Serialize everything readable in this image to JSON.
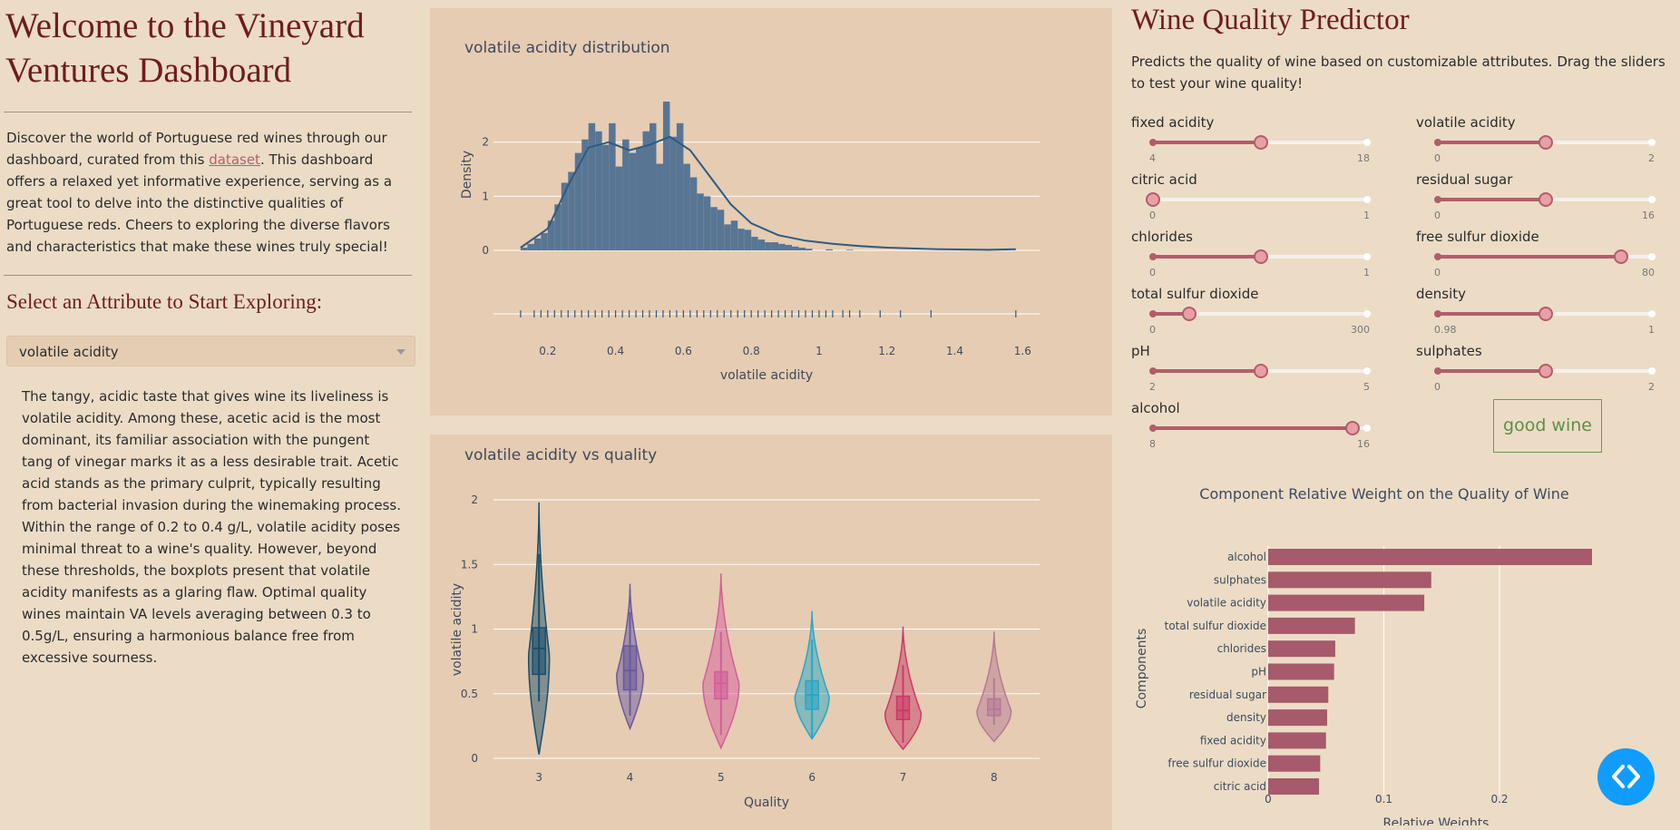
{
  "dashboard": {
    "title": "Welcome to the Vineyard Ventures Dashboard",
    "intro_before": "Discover the world of Portuguese red wines through our dashboard, curated from this ",
    "intro_link": "dataset",
    "intro_after": ". This dashboard offers a relaxed yet informative experience, serving as a great tool to delve into the distinctive qualities of Portuguese reds. Cheers to exploring the diverse flavors and characteristics that make these wines truly special!",
    "select_heading": "Select an Attribute to Start Exploring:",
    "dropdown_value": "volatile acidity",
    "description": "The tangy, acidic taste that gives wine its liveliness is volatile acidity. Among these, acetic acid is the most dominant, its familiar association with the pungent tang of vinegar marks it as a less desirable trait. Acetic acid stands as the primary culprit, typically resulting from bacterial invasion during the winemaking process. Within the range of 0.2 to 0.4 g/L, volatile acidity poses minimal threat to a wine's quality. However, beyond these thresholds, the boxplots present that volatile acidity manifests as a glaring flaw. Optimal quality wines maintain VA levels averaging between 0.3 to 0.5g/L, ensuring a harmonious balance free from excessive sourness."
  },
  "predictor": {
    "title": "Wine Quality Predictor",
    "subtitle": "Predicts the quality of wine based on customizable attributes. Drag the sliders to test your wine quality!",
    "result": "good wine",
    "sliders": [
      {
        "label": "fixed acidity",
        "min": "4",
        "max": "18",
        "value": 11
      },
      {
        "label": "volatile acidity",
        "min": "0",
        "max": "2",
        "value": 1
      },
      {
        "label": "citric acid",
        "min": "0",
        "max": "1",
        "value": 0
      },
      {
        "label": "residual sugar",
        "min": "0",
        "max": "16",
        "value": 8
      },
      {
        "label": "chlorides",
        "min": "0",
        "max": "1",
        "value": 0.5
      },
      {
        "label": "free sulfur dioxide",
        "min": "0",
        "max": "80",
        "value": 68
      },
      {
        "label": "total sulfur dioxide",
        "min": "0",
        "max": "300",
        "value": 50
      },
      {
        "label": "density",
        "min": "0.98",
        "max": "1",
        "value": 0.99
      },
      {
        "label": "pH",
        "min": "2",
        "max": "5",
        "value": 3.5
      },
      {
        "label": "sulphates",
        "min": "0",
        "max": "2",
        "value": 1
      },
      {
        "label": "alcohol",
        "min": "8",
        "max": "16",
        "value": 15.4
      }
    ]
  },
  "colors": {
    "accent": "#b25d6a",
    "title": "#6f1c1f",
    "hist": "#587694",
    "button": "#119dff"
  },
  "chart_data": [
    {
      "type": "bar",
      "subtype": "histogram-with-density-and-rug",
      "title": "volatile acidity distribution",
      "xlabel": "volatile acidity",
      "ylabel": "Density",
      "xlim": [
        0.04,
        1.65
      ],
      "ylim": [
        0,
        2.8
      ],
      "xticks": [
        "0.2",
        "0.4",
        "0.6",
        "0.8",
        "1",
        "1.2",
        "1.4",
        "1.6"
      ],
      "yticks": [
        "0",
        "1",
        "2"
      ],
      "bin_start": 0.12,
      "bin_width": 0.02,
      "values": [
        0.05,
        0.12,
        0.22,
        0.32,
        0.55,
        0.85,
        1.25,
        1.45,
        1.8,
        2.05,
        2.35,
        2.2,
        1.95,
        2.35,
        1.55,
        2.05,
        1.8,
        1.9,
        2.2,
        2.35,
        1.6,
        2.75,
        2.1,
        2.35,
        1.6,
        1.35,
        1.05,
        1.0,
        0.8,
        0.75,
        0.48,
        0.55,
        0.4,
        0.38,
        0.25,
        0.2,
        0.15,
        0.15,
        0.12,
        0.1,
        0.07,
        0.05,
        0.03,
        0.0,
        0.0,
        0.02,
        0.0,
        0.0,
        0.01,
        0.0,
        0.0,
        0.0,
        0.0,
        0.0,
        0.0,
        0.0,
        0.0,
        0.0,
        0.0,
        0.0,
        0.0,
        0.0,
        0.0,
        0.0,
        0.0,
        0.0,
        0.0,
        0.0,
        0.0,
        0.0,
        0.0,
        0.02
      ],
      "kde_x": [
        0.12,
        0.2,
        0.26,
        0.32,
        0.38,
        0.44,
        0.5,
        0.56,
        0.62,
        0.68,
        0.74,
        0.8,
        0.88,
        0.96,
        1.04,
        1.12,
        1.2,
        1.35,
        1.5,
        1.58
      ],
      "kde_y": [
        0.05,
        0.4,
        1.2,
        1.9,
        2.0,
        1.85,
        1.95,
        2.1,
        1.85,
        1.35,
        0.85,
        0.5,
        0.28,
        0.18,
        0.12,
        0.08,
        0.05,
        0.02,
        0.01,
        0.02
      ],
      "rug": [
        0.12,
        0.16,
        0.18,
        0.2,
        0.22,
        0.24,
        0.26,
        0.28,
        0.3,
        0.32,
        0.34,
        0.36,
        0.38,
        0.4,
        0.42,
        0.44,
        0.46,
        0.48,
        0.5,
        0.52,
        0.54,
        0.56,
        0.58,
        0.6,
        0.62,
        0.64,
        0.66,
        0.68,
        0.7,
        0.72,
        0.74,
        0.76,
        0.78,
        0.8,
        0.82,
        0.84,
        0.86,
        0.88,
        0.9,
        0.92,
        0.94,
        0.96,
        0.98,
        1.0,
        1.02,
        1.04,
        1.07,
        1.09,
        1.12,
        1.18,
        1.24,
        1.33,
        1.58
      ]
    },
    {
      "type": "violin",
      "title": "volatile acidity vs quality",
      "xlabel": "Quality",
      "ylabel": "volatile acidity",
      "ylim": [
        0,
        2.1
      ],
      "yticks": [
        "0",
        "0.5",
        "1",
        "1.5",
        "2"
      ],
      "categories": [
        "3",
        "4",
        "5",
        "6",
        "7",
        "8"
      ],
      "series": [
        {
          "name": "3",
          "color": "#1a4f6b",
          "min": 0.03,
          "max": 1.98,
          "q1": 0.65,
          "median": 0.85,
          "q3": 1.01,
          "wlo": 0.44,
          "whi": 1.58,
          "width": 0.55,
          "mode": 0.8
        },
        {
          "name": "4",
          "color": "#6a5a9e",
          "min": 0.23,
          "max": 1.35,
          "q1": 0.53,
          "median": 0.68,
          "q3": 0.87,
          "wlo": 0.33,
          "whi": 1.13,
          "width": 0.7,
          "mode": 0.65
        },
        {
          "name": "5",
          "color": "#d45e9a",
          "min": 0.08,
          "max": 1.43,
          "q1": 0.46,
          "median": 0.58,
          "q3": 0.67,
          "wlo": 0.18,
          "whi": 0.98,
          "width": 0.95,
          "mode": 0.58
        },
        {
          "name": "6",
          "color": "#2aa6c4",
          "min": 0.15,
          "max": 1.14,
          "q1": 0.38,
          "median": 0.49,
          "q3": 0.6,
          "wlo": 0.16,
          "whi": 0.92,
          "width": 0.9,
          "mode": 0.48
        },
        {
          "name": "7",
          "color": "#c93b66",
          "min": 0.07,
          "max": 1.02,
          "q1": 0.3,
          "median": 0.37,
          "q3": 0.48,
          "wlo": 0.12,
          "whi": 0.72,
          "width": 0.95,
          "mode": 0.35
        },
        {
          "name": "8",
          "color": "#b57a96",
          "min": 0.13,
          "max": 0.98,
          "q1": 0.33,
          "median": 0.38,
          "q3": 0.46,
          "wlo": 0.26,
          "whi": 0.62,
          "width": 0.9,
          "mode": 0.37
        }
      ]
    },
    {
      "type": "bar",
      "orientation": "horizontal",
      "title": "Component Relative Weight on the Quality of Wine",
      "xlabel": "Relative Weights",
      "ylabel": "Components",
      "xlim": [
        0,
        0.28
      ],
      "xticks": [
        "0",
        "0.1",
        "0.2"
      ],
      "categories": [
        "alcohol",
        "sulphates",
        "volatile acidity",
        "total sulfur dioxide",
        "chlorides",
        "pH",
        "residual sugar",
        "density",
        "fixed acidity",
        "free sulfur dioxide",
        "citric acid"
      ],
      "values": [
        0.28,
        0.141,
        0.135,
        0.075,
        0.058,
        0.057,
        0.052,
        0.051,
        0.05,
        0.045,
        0.044
      ]
    }
  ]
}
